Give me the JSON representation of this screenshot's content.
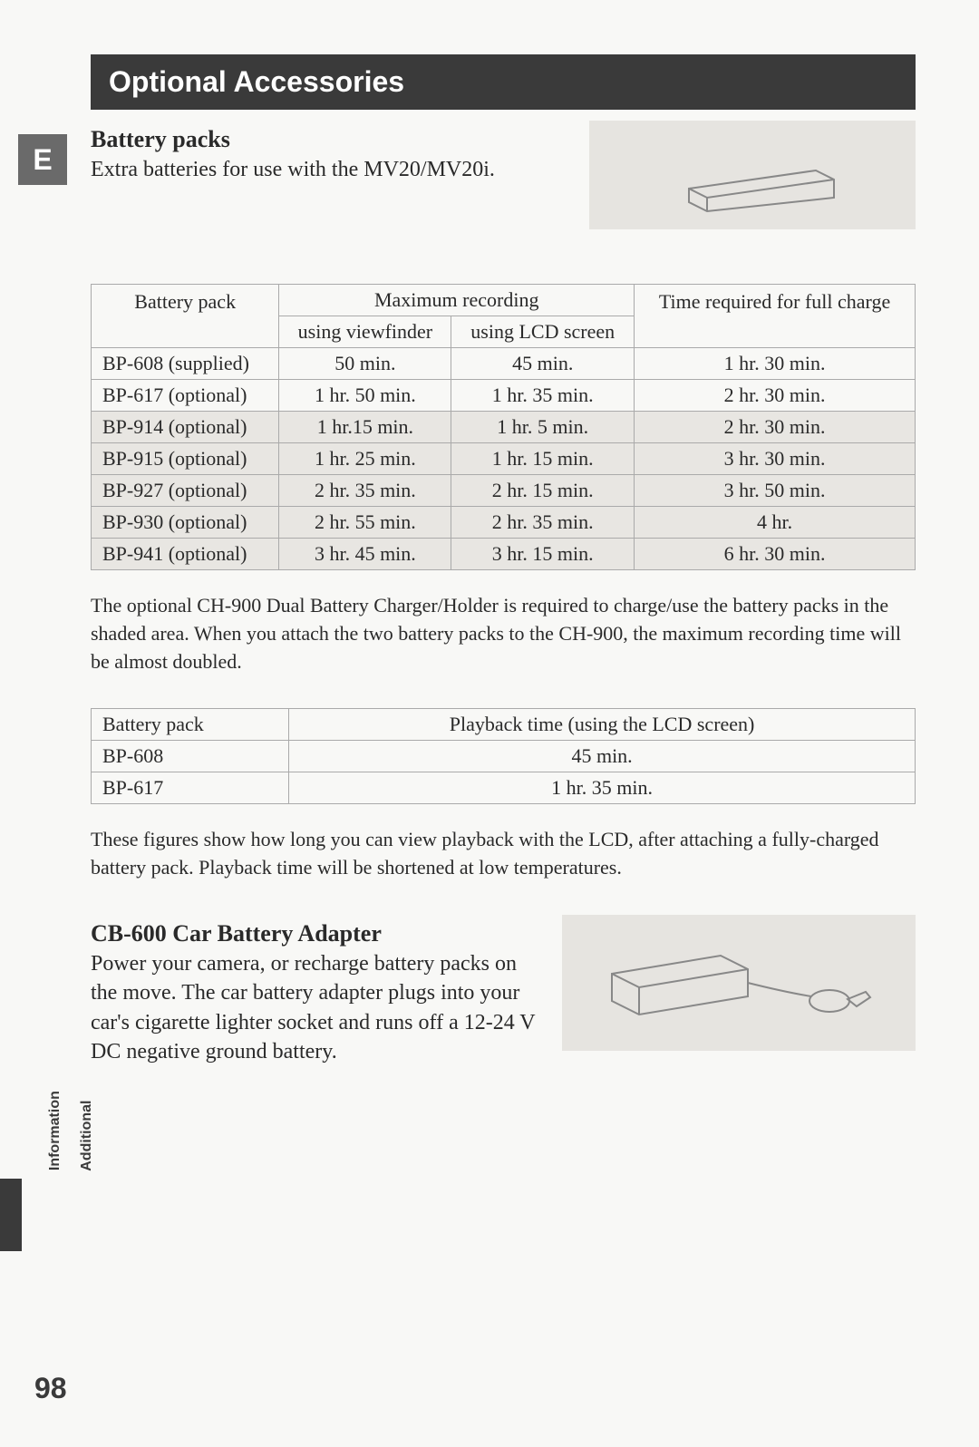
{
  "side_tab": "E",
  "section_header": "Optional Accessories",
  "battery_packs": {
    "title": "Battery packs",
    "intro": "Extra batteries for use with the MV20/MV20i.",
    "image_bg": "#e6e4e0"
  },
  "table1": {
    "headers": {
      "battery_pack": "Battery pack",
      "max_recording": "Maximum recording",
      "viewfinder": "using viewfinder",
      "lcd": "using LCD screen",
      "full_charge": "Time required for full charge"
    },
    "rows": [
      {
        "bp": "BP-608 (supplied)",
        "vf": "50 min.",
        "lcd": "45 min.",
        "fc": "1 hr. 30 min.",
        "shaded": false
      },
      {
        "bp": "BP-617 (optional)",
        "vf": "1 hr. 50 min.",
        "lcd": "1 hr. 35 min.",
        "fc": "2 hr. 30 min.",
        "shaded": false
      },
      {
        "bp": "BP-914 (optional)",
        "vf": "1 hr.15 min.",
        "lcd": "1 hr. 5 min.",
        "fc": "2 hr. 30 min.",
        "shaded": true
      },
      {
        "bp": "BP-915 (optional)",
        "vf": "1 hr. 25 min.",
        "lcd": "1 hr. 15 min.",
        "fc": "3 hr. 30 min.",
        "shaded": true
      },
      {
        "bp": "BP-927 (optional)",
        "vf": "2 hr. 35 min.",
        "lcd": "2 hr. 15 min.",
        "fc": "3 hr. 50 min.",
        "shaded": true
      },
      {
        "bp": "BP-930 (optional)",
        "vf": "2 hr. 55 min.",
        "lcd": "2 hr. 35 min.",
        "fc": "4 hr.",
        "shaded": true
      },
      {
        "bp": "BP-941 (optional)",
        "vf": "3 hr. 45 min.",
        "lcd": "3 hr. 15 min.",
        "fc": "6 hr. 30 min.",
        "shaded": true
      }
    ],
    "col_widths": [
      "22%",
      "22%",
      "22%",
      "22%"
    ]
  },
  "note_ch900": "The optional CH-900 Dual Battery Charger/Holder is required to charge/use the battery packs in the shaded area. When you attach the two battery packs to the CH-900, the maximum recording time will be almost doubled.",
  "table2": {
    "headers": {
      "battery_pack": "Battery pack",
      "playback": "Playback time (using the LCD screen)"
    },
    "rows": [
      {
        "bp": "BP-608",
        "pb": "45 min."
      },
      {
        "bp": "BP-617",
        "pb": "1 hr. 35 min."
      }
    ],
    "col_widths": [
      "24%",
      "76%"
    ]
  },
  "note_figures": "These figures show how long you can view playback with the LCD, after attaching a fully-charged battery pack. Playback time will be shortened at low temperatures.",
  "cb600": {
    "title": "CB-600 Car Battery Adapter",
    "text": "Power your camera, or recharge battery packs on the move. The car battery adapter plugs into your car's cigarette lighter socket and runs off a 12-24 V DC negative ground battery.",
    "image_bg": "#e6e4e0"
  },
  "spine_label_line1": "Additional",
  "spine_label_line2": "Information",
  "page_number": "98",
  "colors": {
    "header_bg": "#3a3a3a",
    "header_text": "#ffffff",
    "body_text": "#2a2a2a",
    "table_border": "#aaaaaa",
    "shaded_bg": "#e8e6e2",
    "page_bg": "#f8f8f6"
  }
}
